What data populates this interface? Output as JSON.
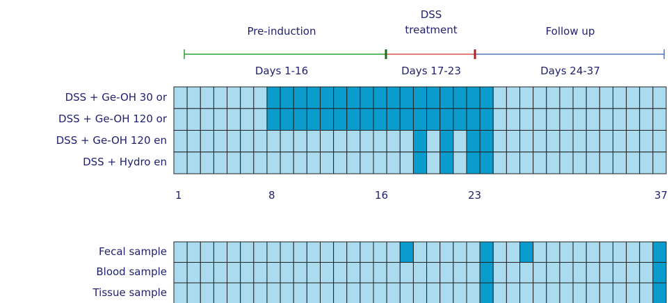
{
  "phases": [
    {
      "name": "Pre-induction",
      "days": "Days 1-16"
    },
    {
      "name": "DSS treatment",
      "days": "Days 17-23"
    },
    {
      "name": "Follow up",
      "days": "Days 24-37"
    }
  ],
  "treatment_groups": [
    {
      "label": "DSS + Ge-OH 30 or",
      "dark_days": [
        8,
        9,
        10,
        11,
        12,
        13,
        14,
        15,
        16,
        17,
        18,
        19,
        20,
        21,
        22,
        23,
        24
      ]
    },
    {
      "label": "DSS + Ge-OH 120 or",
      "dark_days": [
        8,
        9,
        10,
        11,
        12,
        13,
        14,
        15,
        16,
        17,
        18,
        19,
        20,
        21,
        22,
        23,
        24
      ]
    },
    {
      "label": "DSS + Ge-OH 120 en",
      "dark_days": [
        19,
        21,
        23,
        24
      ]
    },
    {
      "label": "DSS + Hydro en",
      "dark_days": [
        19,
        21,
        23,
        24
      ]
    }
  ],
  "day_labels": [
    "1",
    "8",
    "16",
    "23",
    "37"
  ],
  "day_label_positions": [
    1,
    8,
    16,
    23,
    37
  ],
  "samples": [
    {
      "label": "Fecal sample",
      "dark_days": [
        18,
        24,
        27,
        37
      ]
    },
    {
      "label": "Blood sample",
      "dark_days": [
        24,
        37
      ]
    },
    {
      "label": "Tissue sample",
      "dark_days": [
        24,
        37
      ]
    }
  ],
  "total_days": 37
}
